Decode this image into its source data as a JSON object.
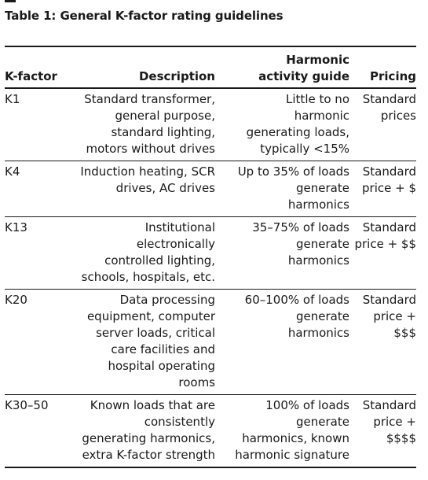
{
  "title": "Table 1: General K-factor rating guidelines",
  "table": {
    "headers": {
      "kfactor": [
        "K-factor"
      ],
      "description": [
        "Description"
      ],
      "harmonic": [
        "Harmonic",
        "activity guide"
      ],
      "pricing": [
        "Pricing"
      ]
    },
    "rows": [
      {
        "kfactor": [
          "K1"
        ],
        "description": [
          "Standard transformer,",
          "general purpose,",
          "standard lighting,",
          "motors without drives"
        ],
        "harmonic": [
          "Little to no",
          "harmonic",
          "generating loads,",
          "typically <15%"
        ],
        "pricing": [
          "Standard",
          "prices"
        ]
      },
      {
        "kfactor": [
          "K4"
        ],
        "description": [
          "Induction heating, SCR",
          "drives, AC drives"
        ],
        "harmonic": [
          "Up to 35% of loads",
          "generate",
          "harmonics"
        ],
        "pricing": [
          "Standard",
          "price + $"
        ]
      },
      {
        "kfactor": [
          "K13"
        ],
        "description": [
          "Institutional",
          "electronically",
          "controlled lighting,",
          "schools, hospitals, etc."
        ],
        "harmonic": [
          "35–75% of loads",
          "generate",
          "harmonics"
        ],
        "pricing": [
          "Standard",
          "price + $$"
        ]
      },
      {
        "kfactor": [
          "K20"
        ],
        "description": [
          "Data processing",
          "equipment, computer",
          "server loads, critical",
          "care facilities and",
          "hospital operating",
          "rooms"
        ],
        "harmonic": [
          "60–100% of loads",
          "generate",
          "harmonics"
        ],
        "pricing": [
          "Standard",
          "price +",
          "$$$"
        ]
      },
      {
        "kfactor": [
          "K30–50"
        ],
        "description": [
          "Known loads that are",
          "consistently",
          "generating harmonics,",
          "extra K-factor strength"
        ],
        "harmonic": [
          "100% of loads",
          "generate",
          "harmonics, known",
          "harmonic signature"
        ],
        "pricing": [
          "Standard",
          "price +",
          "$$$$"
        ]
      }
    ]
  }
}
